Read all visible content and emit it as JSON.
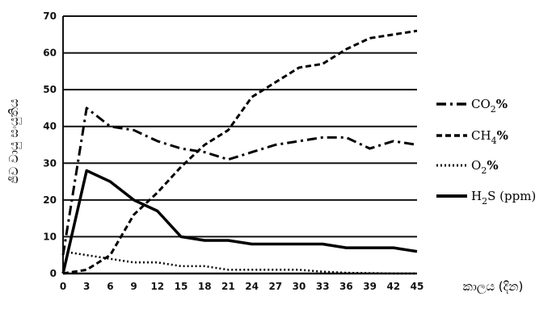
{
  "chart_data": {
    "type": "line",
    "xlabel": "කාලය (දින)",
    "ylabel": "ජීව වායු සංයුතිය",
    "x": [
      0,
      3,
      6,
      9,
      12,
      15,
      18,
      21,
      24,
      27,
      30,
      33,
      36,
      39,
      42,
      45
    ],
    "x_tick_labels": [
      "0",
      "3",
      "6",
      "9",
      "12",
      "15",
      "18",
      "21",
      "24",
      "27",
      "30",
      "33",
      "36",
      "39",
      "42",
      "45"
    ],
    "xlim": [
      0,
      45
    ],
    "ylim": [
      0,
      70
    ],
    "y_ticks": [
      0,
      10,
      20,
      30,
      40,
      50,
      60,
      70
    ],
    "y_tick_labels": [
      "0",
      "10",
      "20",
      "30",
      "40",
      "50",
      "60",
      "70"
    ],
    "grid": "horizontal",
    "legend_position": "right",
    "series": [
      {
        "name": "CO2%",
        "label_main": "CO",
        "label_sub": "2",
        "label_suffix": "%",
        "style": "dash-dot",
        "color": "#000000",
        "points": [
          [
            0,
            5
          ],
          [
            1.5,
            25
          ],
          [
            3,
            45
          ],
          [
            6,
            40
          ],
          [
            9,
            39
          ],
          [
            12,
            36
          ],
          [
            15,
            34
          ],
          [
            18,
            33
          ],
          [
            21,
            31
          ],
          [
            24,
            33
          ],
          [
            27,
            35
          ],
          [
            30,
            36
          ],
          [
            33,
            37
          ],
          [
            36,
            37
          ],
          [
            39,
            34
          ],
          [
            42,
            36
          ],
          [
            45,
            35
          ]
        ]
      },
      {
        "name": "CH4%",
        "label_main": "CH",
        "label_sub": "4",
        "label_suffix": "%",
        "style": "dashed",
        "color": "#000000",
        "points": [
          [
            0,
            0
          ],
          [
            3,
            1
          ],
          [
            6,
            5
          ],
          [
            9,
            16
          ],
          [
            12,
            22
          ],
          [
            15,
            29
          ],
          [
            18,
            35
          ],
          [
            21,
            39
          ],
          [
            24,
            48
          ],
          [
            27,
            52
          ],
          [
            30,
            56
          ],
          [
            33,
            57
          ],
          [
            36,
            61
          ],
          [
            39,
            64
          ],
          [
            42,
            65
          ],
          [
            45,
            66
          ]
        ]
      },
      {
        "name": "O2%",
        "label_main": "O",
        "label_sub": "2",
        "label_suffix": "%",
        "style": "dotted",
        "color": "#000000",
        "points": [
          [
            0,
            6
          ],
          [
            3,
            5
          ],
          [
            6,
            4
          ],
          [
            9,
            3
          ],
          [
            12,
            3
          ],
          [
            15,
            2
          ],
          [
            18,
            2
          ],
          [
            21,
            1
          ],
          [
            24,
            1
          ],
          [
            27,
            1
          ],
          [
            30,
            1
          ],
          [
            33,
            0.5
          ],
          [
            36,
            0.2
          ],
          [
            39,
            0.1
          ],
          [
            42,
            0
          ],
          [
            45,
            0
          ]
        ]
      },
      {
        "name": "H2S (ppm)",
        "label_main": "H",
        "label_sub": "2",
        "label_suffix": "S (ppm)",
        "style": "solid",
        "color": "#000000",
        "points": [
          [
            0,
            0
          ],
          [
            3,
            28
          ],
          [
            6,
            25
          ],
          [
            9,
            20
          ],
          [
            12,
            17
          ],
          [
            15,
            10
          ],
          [
            18,
            9
          ],
          [
            21,
            9
          ],
          [
            24,
            8
          ],
          [
            27,
            8
          ],
          [
            30,
            8
          ],
          [
            33,
            8
          ],
          [
            36,
            7
          ],
          [
            39,
            7
          ],
          [
            42,
            7
          ],
          [
            45,
            6
          ]
        ]
      }
    ]
  }
}
